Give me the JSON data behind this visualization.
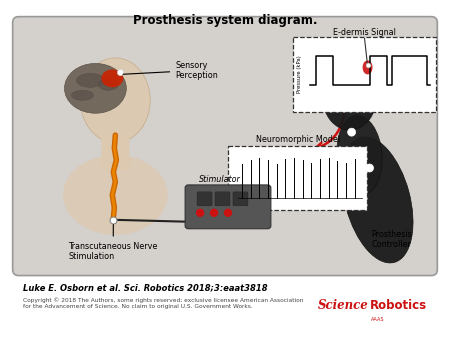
{
  "title": "Prosthesis system diagram.",
  "title_fontsize": 8.5,
  "title_fontweight": "bold",
  "citation": "Luke E. Osborn et al. Sci. Robotics 2018;3:eaat3818",
  "citation_fontsize": 6.0,
  "citation_fontstyle": "italic",
  "citation_fontweight": "bold",
  "copyright_text": "Copyright © 2018 The Authors, some rights reserved; exclusive licensee American Association\nfor the Advancement of Science. No claim to original U.S. Government Works.",
  "copyright_fontsize": 4.2,
  "background_color": "#ffffff",
  "diagram_bg": "#d4d0cc",
  "diagram_border": "#999999",
  "labels": {
    "sensory_perception": "Sensory\nPerception",
    "e_dermis": "E-dermis Signal",
    "pressure_label": "Pressure (kPa)",
    "neuromorphic": "Neuromorphic Model",
    "stimulator": "Stimulator",
    "transcutaneous": "Transcutaneous Nerve\nStimulation",
    "prosthesis_controller": "Prosthesis\nController"
  },
  "label_fontsize": 5.8,
  "red_color": "#cc1111",
  "black_color": "#111111",
  "dark_color": "#222222"
}
